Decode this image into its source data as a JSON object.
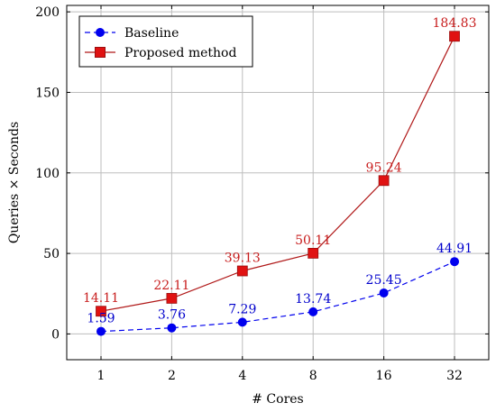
{
  "chart_data": {
    "type": "line",
    "categories": [
      "1",
      "2",
      "4",
      "8",
      "16",
      "32"
    ],
    "xlabel": "# Cores",
    "ylabel": "Queries × Seconds",
    "ylim": [
      -16,
      204
    ],
    "yticks": [
      "0",
      "50",
      "100",
      "150",
      "200"
    ],
    "grid": true,
    "legend_position": "top-left",
    "series": [
      {
        "name": "Baseline",
        "values": [
          1.59,
          3.76,
          7.29,
          13.74,
          25.45,
          44.91
        ],
        "labels": [
          "1.59",
          "3.76",
          "7.29",
          "13.74",
          "25.45",
          "44.91"
        ],
        "color": "#0000ee",
        "marker": "circle",
        "line_style": "dashed"
      },
      {
        "name": "Proposed method",
        "values": [
          14.11,
          22.11,
          39.13,
          50.11,
          95.24,
          184.83
        ],
        "labels": [
          "14.11",
          "22.11",
          "39.13",
          "50.11",
          "95.24",
          "184.83"
        ],
        "color": "#b01818",
        "marker": "square",
        "line_style": "solid"
      }
    ]
  }
}
